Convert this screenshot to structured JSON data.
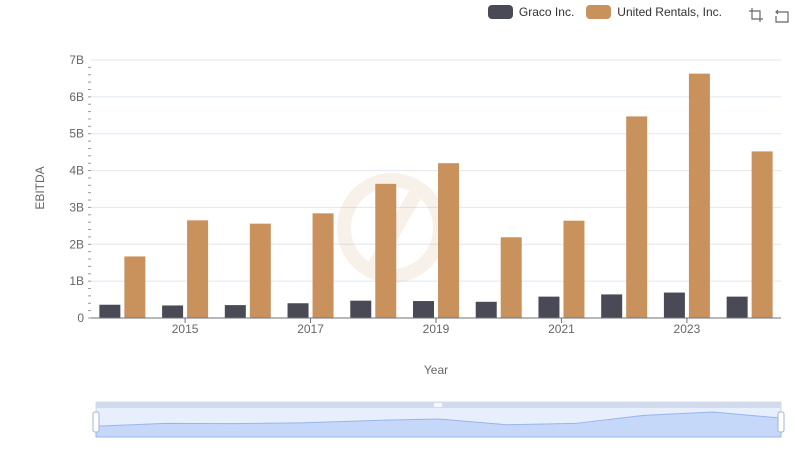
{
  "legend": {
    "items": [
      {
        "name": "Graco Inc.",
        "color": "#4a4a57"
      },
      {
        "name": "United Rentals, Inc.",
        "color": "#c9925d"
      }
    ]
  },
  "toolbox": {
    "icons": [
      "zoom-icon",
      "restore-icon"
    ]
  },
  "chart_data": {
    "type": "bar",
    "x": [
      2014,
      2015,
      2016,
      2017,
      2018,
      2019,
      2020,
      2021,
      2022,
      2023,
      2024
    ],
    "x_tick_labels": [
      "2015",
      "2017",
      "2019",
      "2021",
      "2023"
    ],
    "y_tick_labels": [
      "0",
      "1B",
      "2B",
      "3B",
      "4B",
      "5B",
      "6B",
      "7B"
    ],
    "xlabel": "Year",
    "ylabel": "EBITDA",
    "ylim": [
      0,
      7000000000
    ],
    "grid": true,
    "legend_position": "top-right",
    "series": [
      {
        "name": "Graco Inc.",
        "color": "#4a4a57",
        "values": [
          360000000,
          340000000,
          350000000,
          400000000,
          470000000,
          460000000,
          440000000,
          580000000,
          640000000,
          690000000,
          580000000
        ]
      },
      {
        "name": "United Rentals, Inc.",
        "color": "#c9925d",
        "values": [
          1670000000,
          2650000000,
          2560000000,
          2840000000,
          3640000000,
          4200000000,
          2190000000,
          2640000000,
          5470000000,
          6630000000,
          4520000000
        ]
      }
    ]
  }
}
